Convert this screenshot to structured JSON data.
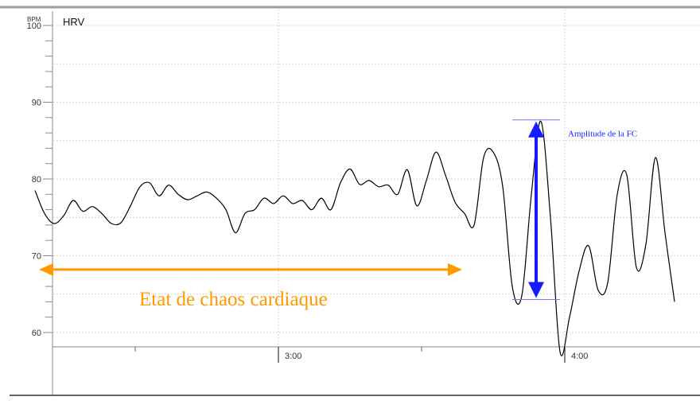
{
  "colors": {
    "line": "#000000",
    "grid": "#bdbdbd",
    "axis": "#8a8a8a",
    "top_bar": "#9e9e9e",
    "annotation_blue": "#1a1aff",
    "annotation_orange": "#ff9900"
  },
  "chart_data": {
    "type": "line",
    "title": "HRV",
    "ylabel": "BPM",
    "ylim": [
      58,
      101
    ],
    "grid": true,
    "x_unit": "mm:ss",
    "y_ticks": [
      {
        "value": 60,
        "label": "60"
      },
      {
        "value": 70,
        "label": "70"
      },
      {
        "value": 80,
        "label": "80"
      },
      {
        "value": 90,
        "label": "90"
      },
      {
        "value": 100,
        "label": "100"
      }
    ],
    "x_ticks": [
      {
        "value": "3:00",
        "label": "3:00"
      },
      {
        "value": "4:00",
        "label": "4:00"
      }
    ],
    "series": [
      {
        "points": [
          [
            "2:09",
            78.5
          ],
          [
            "2:11",
            75.5
          ],
          [
            "2:13",
            74.2
          ],
          [
            "2:15",
            75.2
          ],
          [
            "2:17",
            77.2
          ],
          [
            "2:19",
            75.8
          ],
          [
            "2:21",
            76.4
          ],
          [
            "2:23",
            75.5
          ],
          [
            "2:25",
            74.2
          ],
          [
            "2:27",
            74.3
          ],
          [
            "2:29",
            76.5
          ],
          [
            "2:31",
            79.0
          ],
          [
            "2:33",
            79.5
          ],
          [
            "2:35",
            77.8
          ],
          [
            "2:37",
            79.2
          ],
          [
            "2:39",
            78.0
          ],
          [
            "2:41",
            77.3
          ],
          [
            "2:43",
            77.8
          ],
          [
            "2:45",
            78.3
          ],
          [
            "2:47",
            77.5
          ],
          [
            "2:49",
            76.0
          ],
          [
            "2:51",
            73.0
          ],
          [
            "2:53",
            75.5
          ],
          [
            "2:55",
            76.0
          ],
          [
            "2:57",
            77.5
          ],
          [
            "2:59",
            76.8
          ],
          [
            "3:01",
            77.8
          ],
          [
            "3:03",
            76.8
          ],
          [
            "3:05",
            77.2
          ],
          [
            "3:07",
            76.0
          ],
          [
            "3:09",
            77.5
          ],
          [
            "3:11",
            76.0
          ],
          [
            "3:13",
            79.5
          ],
          [
            "3:15",
            81.3
          ],
          [
            "3:17",
            79.3
          ],
          [
            "3:19",
            79.8
          ],
          [
            "3:21",
            79.0
          ],
          [
            "3:23",
            79.2
          ],
          [
            "3:25",
            78.0
          ],
          [
            "3:27",
            81.2
          ],
          [
            "3:29",
            76.5
          ],
          [
            "3:31",
            79.8
          ],
          [
            "3:33",
            83.5
          ],
          [
            "3:35",
            80.5
          ],
          [
            "3:37",
            77.0
          ],
          [
            "3:39",
            75.5
          ],
          [
            "3:41",
            74.0
          ],
          [
            "3:43",
            82.8
          ],
          [
            "3:45",
            83.5
          ],
          [
            "3:47",
            79.0
          ],
          [
            "3:49",
            66.0
          ],
          [
            "3:51",
            64.8
          ],
          [
            "3:53",
            78.0
          ],
          [
            "3:55",
            87.5
          ],
          [
            "3:57",
            75.0
          ],
          [
            "3:59",
            57.5
          ],
          [
            "4:01",
            62.0
          ],
          [
            "4:03",
            68.0
          ],
          [
            "4:05",
            71.3
          ],
          [
            "4:07",
            65.5
          ],
          [
            "4:09",
            66.5
          ],
          [
            "4:11",
            78.0
          ],
          [
            "4:13",
            80.5
          ],
          [
            "4:15",
            68.5
          ],
          [
            "4:17",
            71.5
          ],
          [
            "4:19",
            82.8
          ],
          [
            "4:21",
            73.0
          ],
          [
            "4:23",
            64.0
          ]
        ]
      }
    ],
    "annotations": [
      {
        "text": "Amplitude de la FC",
        "type": "vertical-double-arrow",
        "from_y": 64.3,
        "to_y": 87.7,
        "at_x": "3:54",
        "color": "#1a1aff"
      },
      {
        "text": "Etat de chaos cardiaque",
        "type": "horizontal-double-arrow",
        "at_y": 68.2,
        "from_x": "2:09",
        "to_x": "3:39",
        "color": "#ff9900"
      }
    ]
  }
}
